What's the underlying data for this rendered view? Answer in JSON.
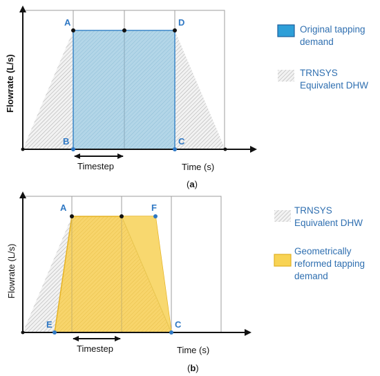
{
  "panel_a": {
    "y_axis_label": "Flowrate (L/s)",
    "x_axis_label": "Time (s)",
    "timestep_label": "Timestep",
    "points": {
      "a": "A",
      "b": "B",
      "c": "C",
      "d": "D"
    },
    "legend": {
      "item1_line1": "Original tapping",
      "item1_line2": "demand",
      "item2_line1": "TRNSYS",
      "item2_line2": "Equivalent DHW"
    },
    "caption_open": "(",
    "caption_letter": "a",
    "caption_close": ")"
  },
  "panel_b": {
    "y_axis_label": "Flowrate (L/s)",
    "x_axis_label": "Time (s)",
    "timestep_label": "Timestep",
    "points": {
      "a": "A",
      "f": "F",
      "e": "E",
      "c": "C"
    },
    "legend": {
      "item1_line1": "TRNSYS",
      "item1_line2": "Equivalent DHW",
      "item2_line1": "Geometrically",
      "item2_line2": "reformed tapping",
      "item2_line3": "demand"
    },
    "caption_open": "(",
    "caption_letter": "b",
    "caption_close": ")"
  },
  "colors": {
    "blue_fill": "#a9cfe2",
    "blue_border": "#3a86c8",
    "gold_fill": "#f7d46a",
    "gold_border": "#e6b324",
    "hatch": "#9a9a9a",
    "point_blue": "#2f78c4"
  }
}
